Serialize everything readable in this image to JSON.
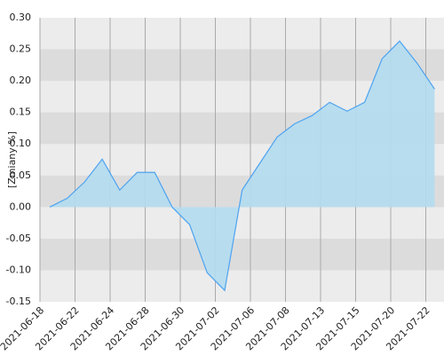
{
  "chart_data": {
    "type": "area",
    "y_label": "[Zmiany %]",
    "xticks": [
      "2021-06-18",
      "2021-06-22",
      "2021-06-24",
      "2021-06-28",
      "2021-06-30",
      "2021-07-02",
      "2021-07-06",
      "2021-07-08",
      "2021-07-13",
      "2021-07-15",
      "2021-07-20",
      "2021-07-22"
    ],
    "values": [
      0.0,
      0.014,
      0.04,
      0.076,
      0.027,
      0.055,
      0.055,
      0.0,
      -0.028,
      -0.104,
      -0.132,
      0.027,
      0.069,
      0.111,
      0.132,
      0.145,
      0.166,
      0.152,
      0.166,
      0.235,
      0.263,
      0.228,
      0.187
    ],
    "ylim": [
      -0.15,
      0.3
    ],
    "yticks": [
      {
        "value": -0.15,
        "label": "-0.15"
      },
      {
        "value": -0.1,
        "label": "-0.10"
      },
      {
        "value": -0.05,
        "label": "-0.05"
      },
      {
        "value": 0,
        "label": "0.00"
      },
      {
        "value": 0.05,
        "label": "0.05"
      },
      {
        "value": 0.1,
        "label": "0.10"
      },
      {
        "value": 0.15,
        "label": "0.15"
      },
      {
        "value": 0.2,
        "label": "0.20"
      },
      {
        "value": 0.25,
        "label": "0.25"
      },
      {
        "value": 0.3,
        "label": "0.30"
      }
    ],
    "color": "#4da3f0",
    "fill": "#b3dcef",
    "grid": true
  }
}
